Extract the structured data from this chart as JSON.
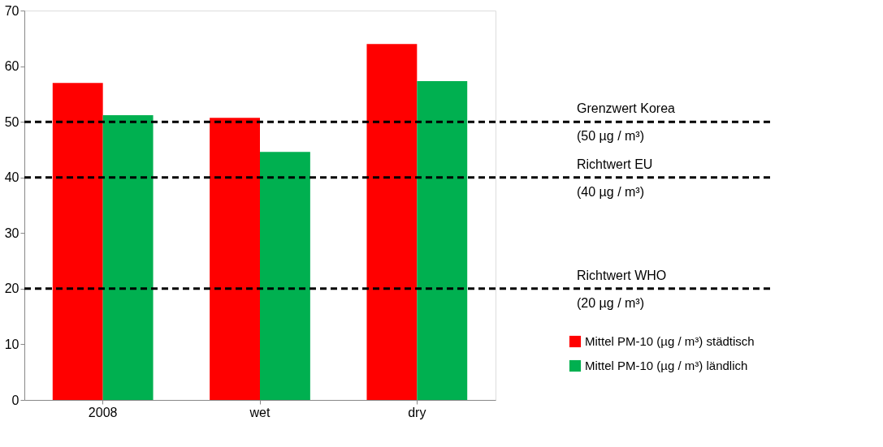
{
  "chart_data": {
    "type": "bar",
    "categories": [
      "2008",
      "wet",
      "dry"
    ],
    "series": [
      {
        "name": "Mittel PM-10 (µg / m³) städtisch",
        "color": "#ff0000",
        "values": [
          57,
          50.7,
          64
        ]
      },
      {
        "name": "Mittel PM-10 (µg / m³) ländlich",
        "color": "#00b050",
        "values": [
          51.2,
          44.6,
          57.3
        ]
      }
    ],
    "ylim": [
      0,
      70
    ],
    "yticks": [
      0,
      10,
      20,
      30,
      40,
      50,
      60,
      70
    ],
    "grid": false,
    "legend": "bottom right",
    "ref_lines": [
      {
        "axis": "y",
        "value": 50,
        "label": "Grenzwert Korea\n(50 µg / m³)",
        "color": "#000000",
        "line_style": "dashed"
      },
      {
        "axis": "y",
        "value": 40,
        "label": "Richtwert EU\n(40 µg / m³)",
        "color": "#000000",
        "line_style": "dashed"
      },
      {
        "axis": "y",
        "value": 20,
        "label": "Richtwert WHO\n(20 µg / m³)",
        "color": "#000000",
        "line_style": "dashed"
      }
    ]
  }
}
